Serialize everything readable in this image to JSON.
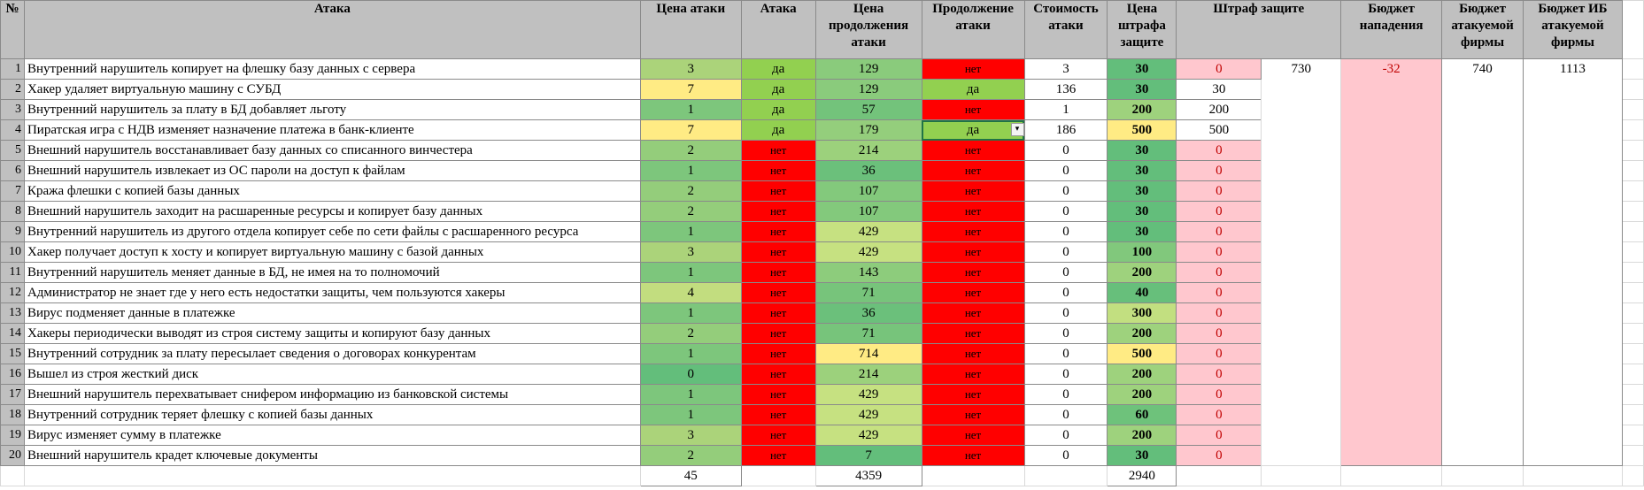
{
  "headers": {
    "num": "№",
    "attack": "Атака",
    "attack_price": "Цена атаки",
    "attack_yes": "Атака",
    "continue_price": "Цена продолжения атаки",
    "continue": "Продолжение атаки",
    "attack_cost": "Стоимость атаки",
    "penalty_price": "Цена штрафа защите",
    "penalty": "Штраф защите",
    "budget_attack": "Бюджет нападения",
    "budget_attacked": "Бюджет атакуемой фирмы",
    "budget_is": "Бюджет ИБ атакуемой фирмы"
  },
  "colors": {
    "red": "#ff0000",
    "green_yes": "#92d050",
    "pink": "#ffc7ce",
    "header": "#c0c0c0"
  },
  "rows": [
    {
      "n": "1",
      "name": "Внутренний нарушитель копирует на флешку базу данных с сервера",
      "price": "3",
      "price_bg": "#abd37a",
      "yes": "да",
      "cont_price": "129",
      "cont_bg": "#8acb7c",
      "cont": "нет",
      "cost": "3",
      "pen_price": "30",
      "pen_bg": "#63be7b",
      "penalty": "0"
    },
    {
      "n": "2",
      "name": "Хакер удаляет виртуальную машину с СУБД",
      "price": "7",
      "price_bg": "#ffeb84",
      "yes": "да",
      "cont_price": "129",
      "cont_bg": "#8acb7c",
      "cont": "да",
      "cost": "136",
      "pen_price": "30",
      "pen_bg": "#63be7b",
      "penalty": "30"
    },
    {
      "n": "3",
      "name": "Внутренний нарушитель за плату в БД добавляет льготу",
      "price": "1",
      "price_bg": "#7dc67c",
      "yes": "да",
      "cont_price": "57",
      "cont_bg": "#73c37b",
      "cont": "нет",
      "cost": "1",
      "pen_price": "200",
      "pen_bg": "#9ed27d",
      "penalty": "200"
    },
    {
      "n": "4",
      "name": "Пиратская игра с НДВ изменяет назначение платежа в банк-клиенте",
      "price": "7",
      "price_bg": "#ffeb84",
      "yes": "да",
      "cont_price": "179",
      "cont_bg": "#94ce7c",
      "cont": "да",
      "cost": "186",
      "pen_price": "500",
      "pen_bg": "#ffeb84",
      "penalty": "500"
    },
    {
      "n": "5",
      "name": "Внешний нарушитель восстанавливает базу данных со списанного винчестера",
      "price": "2",
      "price_bg": "#94cd7b",
      "yes": "нет",
      "cont_price": "214",
      "cont_bg": "#9cd17c",
      "cont": "нет",
      "cost": "0",
      "pen_price": "30",
      "pen_bg": "#63be7b",
      "penalty": "0"
    },
    {
      "n": "6",
      "name": "Внешний нарушитель извлекает из ОС пароли на доступ к файлам",
      "price": "1",
      "price_bg": "#7dc67c",
      "yes": "нет",
      "cont_price": "36",
      "cont_bg": "#6bc07b",
      "cont": "нет",
      "cost": "0",
      "pen_price": "30",
      "pen_bg": "#63be7b",
      "penalty": "0"
    },
    {
      "n": "7",
      "name": "Кража флешки с копией базы данных",
      "price": "2",
      "price_bg": "#94cd7b",
      "yes": "нет",
      "cont_price": "107",
      "cont_bg": "#83c97c",
      "cont": "нет",
      "cost": "0",
      "pen_price": "30",
      "pen_bg": "#63be7b",
      "penalty": "0"
    },
    {
      "n": "8",
      "name": "Внешний нарушитель заходит на расшаренные ресурсы и копирует базу данных",
      "price": "2",
      "price_bg": "#94cd7b",
      "yes": "нет",
      "cont_price": "107",
      "cont_bg": "#83c97c",
      "cont": "нет",
      "cost": "0",
      "pen_price": "30",
      "pen_bg": "#63be7b",
      "penalty": "0"
    },
    {
      "n": "9",
      "name": "Внутренний нарушитель из другого отдела копирует себе по сети файлы с расшаренного ресурса",
      "price": "1",
      "price_bg": "#7dc67c",
      "yes": "нет",
      "cont_price": "429",
      "cont_bg": "#c6e181",
      "cont": "нет",
      "cost": "0",
      "pen_price": "30",
      "pen_bg": "#63be7b",
      "penalty": "0"
    },
    {
      "n": "10",
      "name": "Хакер получает доступ к хосту и копирует виртуальную машину с базой данных",
      "price": "3",
      "price_bg": "#abd37a",
      "yes": "нет",
      "cont_price": "429",
      "cont_bg": "#c6e181",
      "cont": "нет",
      "cost": "0",
      "pen_price": "100",
      "pen_bg": "#81c87c",
      "penalty": "0"
    },
    {
      "n": "11",
      "name": "Внутренний нарушитель меняет данные в БД, не имея на то полномочий",
      "price": "1",
      "price_bg": "#7dc67c",
      "yes": "нет",
      "cont_price": "143",
      "cont_bg": "#8dcc7c",
      "cont": "нет",
      "cost": "0",
      "pen_price": "200",
      "pen_bg": "#9ed27d",
      "penalty": "0"
    },
    {
      "n": "12",
      "name": "Администратор не знает где у него есть недостатки защиты, чем пользуются хакеры",
      "price": "4",
      "price_bg": "#c2dd7f",
      "yes": "нет",
      "cont_price": "71",
      "cont_bg": "#77c47b",
      "cont": "нет",
      "cost": "0",
      "pen_price": "40",
      "pen_bg": "#67bf7b",
      "penalty": "0"
    },
    {
      "n": "13",
      "name": "Вирус подменяет данные в платежке",
      "price": "1",
      "price_bg": "#7dc67c",
      "yes": "нет",
      "cont_price": "36",
      "cont_bg": "#6bc07b",
      "cont": "нет",
      "cost": "0",
      "pen_price": "300",
      "pen_bg": "#c2df80",
      "penalty": "0"
    },
    {
      "n": "14",
      "name": "Хакеры периодически выводят из строя систему защиты и копируют базу данных",
      "price": "2",
      "price_bg": "#94cd7b",
      "yes": "нет",
      "cont_price": "71",
      "cont_bg": "#77c47b",
      "cont": "нет",
      "cost": "0",
      "pen_price": "200",
      "pen_bg": "#9ed27d",
      "penalty": "0"
    },
    {
      "n": "15",
      "name": "Внутренний сотрудник за плату пересылает сведения о договорах конкурентам",
      "price": "1",
      "price_bg": "#7dc67c",
      "yes": "нет",
      "cont_price": "714",
      "cont_bg": "#ffeb84",
      "cont": "нет",
      "cost": "0",
      "pen_price": "500",
      "pen_bg": "#ffeb84",
      "penalty": "0"
    },
    {
      "n": "16",
      "name": "Вышел из строя жесткий диск",
      "price": "0",
      "price_bg": "#63be7b",
      "yes": "нет",
      "cont_price": "214",
      "cont_bg": "#9cd17c",
      "cont": "нет",
      "cost": "0",
      "pen_price": "200",
      "pen_bg": "#9ed27d",
      "penalty": "0"
    },
    {
      "n": "17",
      "name": "Внешний нарушитель перехватывает снифером информацию из банковской системы",
      "price": "1",
      "price_bg": "#7dc67c",
      "yes": "нет",
      "cont_price": "429",
      "cont_bg": "#c6e181",
      "cont": "нет",
      "cost": "0",
      "pen_price": "200",
      "pen_bg": "#9ed27d",
      "penalty": "0"
    },
    {
      "n": "18",
      "name": "Внутренний сотрудник теряет флешку с копией базы данных",
      "price": "1",
      "price_bg": "#7dc67c",
      "yes": "нет",
      "cont_price": "429",
      "cont_bg": "#c6e181",
      "cont": "нет",
      "cost": "0",
      "pen_price": "60",
      "pen_bg": "#6ec27b",
      "penalty": "0"
    },
    {
      "n": "19",
      "name": "Вирус изменяет сумму в платежке",
      "price": "3",
      "price_bg": "#abd37a",
      "yes": "нет",
      "cont_price": "429",
      "cont_bg": "#c6e181",
      "cont": "нет",
      "cost": "0",
      "pen_price": "200",
      "pen_bg": "#9ed27d",
      "penalty": "0"
    },
    {
      "n": "20",
      "name": "Внешний нарушитель крадет ключевые документы",
      "price": "2",
      "price_bg": "#94cd7b",
      "yes": "нет",
      "cont_price": "7",
      "cont_bg": "#63be7b",
      "cont": "нет",
      "cost": "0",
      "pen_price": "30",
      "pen_bg": "#63be7b",
      "penalty": "0"
    }
  ],
  "summary": {
    "penalty_total": "730",
    "budget_attack": "-32",
    "budget_attacked": "740",
    "budget_is": "1113"
  },
  "totals": {
    "price": "45",
    "cont_price": "4359",
    "pen_price": "2940"
  }
}
